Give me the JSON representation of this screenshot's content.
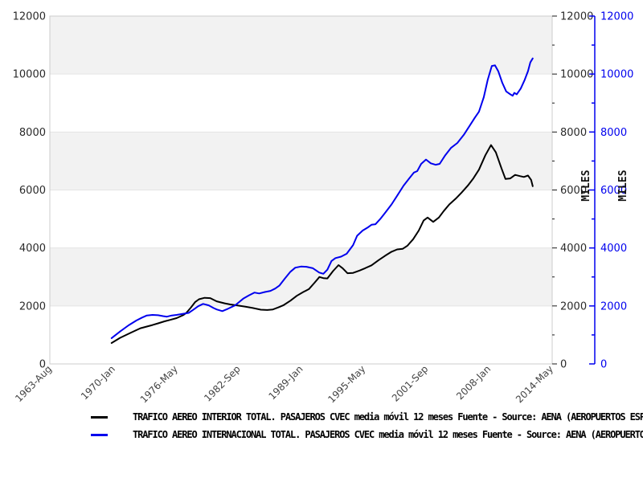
{
  "chart_data": {
    "type": "line",
    "title": "",
    "xlabel": "",
    "ylabel_right": "MILES",
    "ylim": [
      0,
      12000
    ],
    "y_tick_step": 2000,
    "y_minor_step": 1000,
    "y_tick_labels": [
      "0",
      "2000",
      "4000",
      "6000",
      "8000",
      "10000",
      "12000"
    ],
    "x_range": [
      1963.58,
      2014.42
    ],
    "x_ticks": [
      {
        "label": "1963-Aug",
        "year": 1963.58
      },
      {
        "label": "1970-Jan",
        "year": 1970.0
      },
      {
        "label": "1976-May",
        "year": 1976.33
      },
      {
        "label": "1982-Sep",
        "year": 1982.67
      },
      {
        "label": "1989-Jan",
        "year": 1989.0
      },
      {
        "label": "1995-May",
        "year": 1995.33
      },
      {
        "label": "2001-Sep",
        "year": 2001.67
      },
      {
        "label": "2008-Jan",
        "year": 2008.0
      },
      {
        "label": "2014-May",
        "year": 2014.33
      }
    ],
    "grid": "horizontal-bands",
    "band_color": "#f2f2f2",
    "gridline_color": "#e4e4e4",
    "border_color": "#cccccc",
    "axis_text_color": "#2a2a2a",
    "x_label_color": "#444444",
    "blue_axis_color": "#0000ee",
    "legend_position": "bottom-left",
    "series": [
      {
        "name": "interior",
        "color": "#000000",
        "legend": "TRAFICO AEREO INTERIOR TOTAL. PASAJEROS CVEC media móvil 12 meses  Fuente - Source: AENA (AEROPUERTOS ESPAÑ",
        "points": [
          [
            1969.83,
            720
          ],
          [
            1970.7,
            900
          ],
          [
            1971.8,
            1080
          ],
          [
            1972.75,
            1230
          ],
          [
            1973.97,
            1340
          ],
          [
            1974.54,
            1400
          ],
          [
            1975.19,
            1470
          ],
          [
            1975.76,
            1520
          ],
          [
            1976.41,
            1580
          ],
          [
            1977.06,
            1680
          ],
          [
            1977.39,
            1760
          ],
          [
            1977.87,
            1950
          ],
          [
            1978.28,
            2130
          ],
          [
            1978.68,
            2230
          ],
          [
            1979.25,
            2280
          ],
          [
            1979.82,
            2270
          ],
          [
            1980.47,
            2160
          ],
          [
            1981.28,
            2090
          ],
          [
            1981.85,
            2050
          ],
          [
            1982.5,
            2020
          ],
          [
            1983.31,
            1980
          ],
          [
            1984.12,
            1930
          ],
          [
            1984.93,
            1870
          ],
          [
            1985.58,
            1860
          ],
          [
            1986.15,
            1880
          ],
          [
            1986.72,
            1950
          ],
          [
            1987.2,
            2020
          ],
          [
            1987.93,
            2180
          ],
          [
            1988.58,
            2350
          ],
          [
            1989.23,
            2480
          ],
          [
            1989.8,
            2580
          ],
          [
            1990.37,
            2800
          ],
          [
            1990.86,
            3000
          ],
          [
            1991.26,
            2960
          ],
          [
            1991.67,
            2950
          ],
          [
            1992.24,
            3200
          ],
          [
            1992.8,
            3410
          ],
          [
            1993.21,
            3300
          ],
          [
            1993.7,
            3130
          ],
          [
            1994.27,
            3140
          ],
          [
            1994.92,
            3220
          ],
          [
            1995.48,
            3300
          ],
          [
            1996.13,
            3400
          ],
          [
            1996.86,
            3580
          ],
          [
            1997.51,
            3730
          ],
          [
            1998.16,
            3870
          ],
          [
            1998.73,
            3950
          ],
          [
            1999.3,
            3970
          ],
          [
            1999.78,
            4080
          ],
          [
            2000.35,
            4300
          ],
          [
            2000.92,
            4600
          ],
          [
            2001.41,
            4950
          ],
          [
            2001.81,
            5050
          ],
          [
            2002.38,
            4900
          ],
          [
            2002.95,
            5050
          ],
          [
            2003.44,
            5270
          ],
          [
            2004.01,
            5500
          ],
          [
            2004.66,
            5700
          ],
          [
            2005.23,
            5900
          ],
          [
            2005.88,
            6150
          ],
          [
            2006.44,
            6400
          ],
          [
            2007.01,
            6700
          ],
          [
            2007.66,
            7200
          ],
          [
            2008.23,
            7550
          ],
          [
            2008.72,
            7300
          ],
          [
            2009.29,
            6750
          ],
          [
            2009.69,
            6380
          ],
          [
            2010.18,
            6400
          ],
          [
            2010.67,
            6520
          ],
          [
            2011.15,
            6480
          ],
          [
            2011.56,
            6450
          ],
          [
            2011.97,
            6500
          ],
          [
            2012.29,
            6350
          ],
          [
            2012.45,
            6130
          ]
        ]
      },
      {
        "name": "internacional",
        "color": "#0000ee",
        "legend": "TRAFICO AEREO INTERNACIONAL TOTAL. PASAJEROS CVEC media móvil 12 meses  Fuente - Source: AENA (AEROPUERTOS",
        "points": [
          [
            1969.83,
            890
          ],
          [
            1970.7,
            1120
          ],
          [
            1971.54,
            1330
          ],
          [
            1972.35,
            1500
          ],
          [
            1972.92,
            1600
          ],
          [
            1973.4,
            1670
          ],
          [
            1973.97,
            1690
          ],
          [
            1974.54,
            1680
          ],
          [
            1975.03,
            1650
          ],
          [
            1975.43,
            1630
          ],
          [
            1975.92,
            1670
          ],
          [
            1976.41,
            1690
          ],
          [
            1977.06,
            1730
          ],
          [
            1977.63,
            1760
          ],
          [
            1978.03,
            1850
          ],
          [
            1978.6,
            1990
          ],
          [
            1979.09,
            2070
          ],
          [
            1979.66,
            2020
          ],
          [
            1980.14,
            1930
          ],
          [
            1980.47,
            1880
          ],
          [
            1981.04,
            1820
          ],
          [
            1981.6,
            1900
          ],
          [
            1982.33,
            2020
          ],
          [
            1983.15,
            2250
          ],
          [
            1983.72,
            2360
          ],
          [
            1984.28,
            2460
          ],
          [
            1984.77,
            2430
          ],
          [
            1985.34,
            2480
          ],
          [
            1985.91,
            2520
          ],
          [
            1986.39,
            2600
          ],
          [
            1986.8,
            2700
          ],
          [
            1987.37,
            2950
          ],
          [
            1987.93,
            3180
          ],
          [
            1988.42,
            3320
          ],
          [
            1988.99,
            3360
          ],
          [
            1989.55,
            3350
          ],
          [
            1990.2,
            3300
          ],
          [
            1990.85,
            3150
          ],
          [
            1991.26,
            3110
          ],
          [
            1991.67,
            3250
          ],
          [
            1992.08,
            3550
          ],
          [
            1992.48,
            3650
          ],
          [
            1993.05,
            3700
          ],
          [
            1993.62,
            3800
          ],
          [
            1994.27,
            4100
          ],
          [
            1994.68,
            4420
          ],
          [
            1995.24,
            4600
          ],
          [
            1995.73,
            4700
          ],
          [
            1996.13,
            4800
          ],
          [
            1996.54,
            4820
          ],
          [
            1997.02,
            5000
          ],
          [
            1997.51,
            5210
          ],
          [
            1998.16,
            5500
          ],
          [
            1998.73,
            5800
          ],
          [
            1999.38,
            6150
          ],
          [
            1999.95,
            6400
          ],
          [
            2000.43,
            6600
          ],
          [
            2000.76,
            6650
          ],
          [
            2001.16,
            6900
          ],
          [
            2001.65,
            7050
          ],
          [
            2002.14,
            6920
          ],
          [
            2002.62,
            6870
          ],
          [
            2003.03,
            6900
          ],
          [
            2003.6,
            7200
          ],
          [
            2004.17,
            7450
          ],
          [
            2004.82,
            7620
          ],
          [
            2005.47,
            7900
          ],
          [
            2006.04,
            8200
          ],
          [
            2006.6,
            8500
          ],
          [
            2007.01,
            8700
          ],
          [
            2007.5,
            9200
          ],
          [
            2007.9,
            9800
          ],
          [
            2008.31,
            10280
          ],
          [
            2008.63,
            10300
          ],
          [
            2008.96,
            10100
          ],
          [
            2009.37,
            9700
          ],
          [
            2009.77,
            9400
          ],
          [
            2010.18,
            9300
          ],
          [
            2010.42,
            9250
          ],
          [
            2010.59,
            9350
          ],
          [
            2010.83,
            9300
          ],
          [
            2011.24,
            9500
          ],
          [
            2011.64,
            9800
          ],
          [
            2011.97,
            10100
          ],
          [
            2012.21,
            10400
          ],
          [
            2012.45,
            10540
          ]
        ]
      }
    ]
  }
}
